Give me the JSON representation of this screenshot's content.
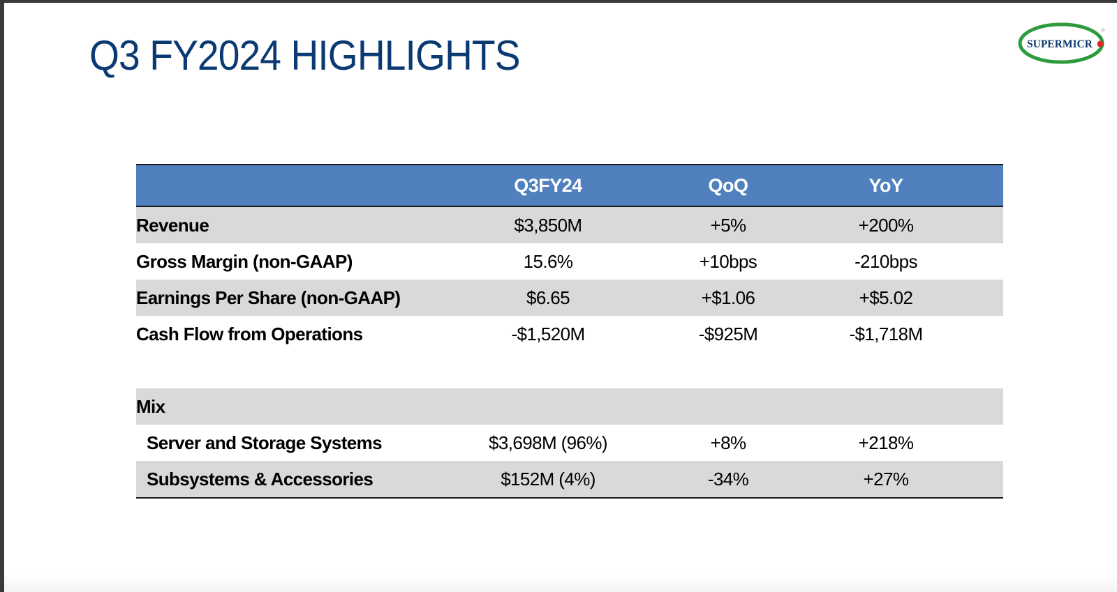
{
  "slide": {
    "title": "Q3 FY2024 HIGHLIGHTS",
    "logo_text": "SUPERMICR",
    "colors": {
      "title": "#0b3a72",
      "header_bg": "#5080bd",
      "row_shade": "#d9d9d9",
      "logo_green": "#2e9a3e",
      "logo_red": "#e0262b"
    }
  },
  "table": {
    "headers": [
      "",
      "Q3FY24",
      "QoQ",
      "YoY"
    ],
    "rows": [
      {
        "label": "Revenue",
        "q3fy24": "$3,850M",
        "qoq": "+5%",
        "yoy": "+200%"
      },
      {
        "label": "Gross Margin (non-GAAP)",
        "q3fy24": "15.6%",
        "qoq": "+10bps",
        "yoy": "-210bps"
      },
      {
        "label": "Earnings Per Share (non-GAAP)",
        "q3fy24": "$6.65",
        "qoq": "+$1.06",
        "yoy": "+$5.02"
      },
      {
        "label": "Cash Flow from Operations",
        "q3fy24": "-$1,520M",
        "qoq": "-$925M",
        "yoy": "-$1,718M"
      }
    ],
    "mix_label": "Mix",
    "mix_rows": [
      {
        "label": "Server and Storage Systems",
        "q3fy24": "$3,698M (96%)",
        "qoq": "+8%",
        "yoy": "+218%"
      },
      {
        "label": "Subsystems & Accessories",
        "q3fy24": "$152M (4%)",
        "qoq": "-34%",
        "yoy": "+27%"
      }
    ]
  }
}
